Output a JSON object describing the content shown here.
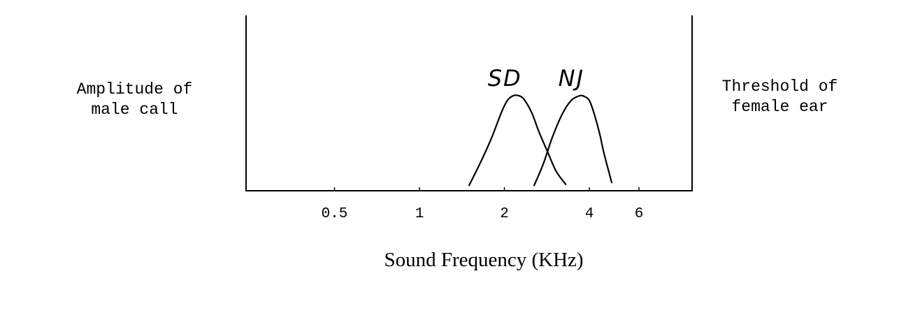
{
  "chart_data": {
    "type": "line",
    "title": "",
    "xlabel": "Sound Frequency (KHz)",
    "ylabel_left": [
      "Amplitude of",
      "male call"
    ],
    "ylabel_right": [
      "Threshold of",
      "female ear"
    ],
    "x_scale": "log",
    "x_ticks": [
      0.5,
      1,
      2,
      4,
      6
    ],
    "x_tick_labels": [
      "0.5",
      "1",
      "2",
      "4",
      "6"
    ],
    "xlim": [
      0.3,
      6.5
    ],
    "ylim": [
      0,
      1
    ],
    "grid": false,
    "legend": "none",
    "series": [
      {
        "name": "SD",
        "color": "#000000",
        "x": [
          1.5,
          1.65,
          1.8,
          1.95,
          2.05,
          2.15,
          2.25,
          2.35,
          2.5,
          2.65,
          2.85,
          3.05,
          3.3
        ],
        "y": [
          0.05,
          0.3,
          0.55,
          0.82,
          0.95,
          1.0,
          1.0,
          0.96,
          0.82,
          0.62,
          0.4,
          0.2,
          0.06
        ]
      },
      {
        "name": "NJ",
        "color": "#000000",
        "x": [
          2.55,
          2.75,
          2.95,
          3.2,
          3.45,
          3.7,
          3.85,
          4.0,
          4.15,
          4.35,
          4.5,
          4.8
        ],
        "y": [
          0.05,
          0.28,
          0.55,
          0.8,
          0.95,
          1.0,
          0.99,
          0.95,
          0.82,
          0.6,
          0.4,
          0.08
        ]
      }
    ]
  }
}
